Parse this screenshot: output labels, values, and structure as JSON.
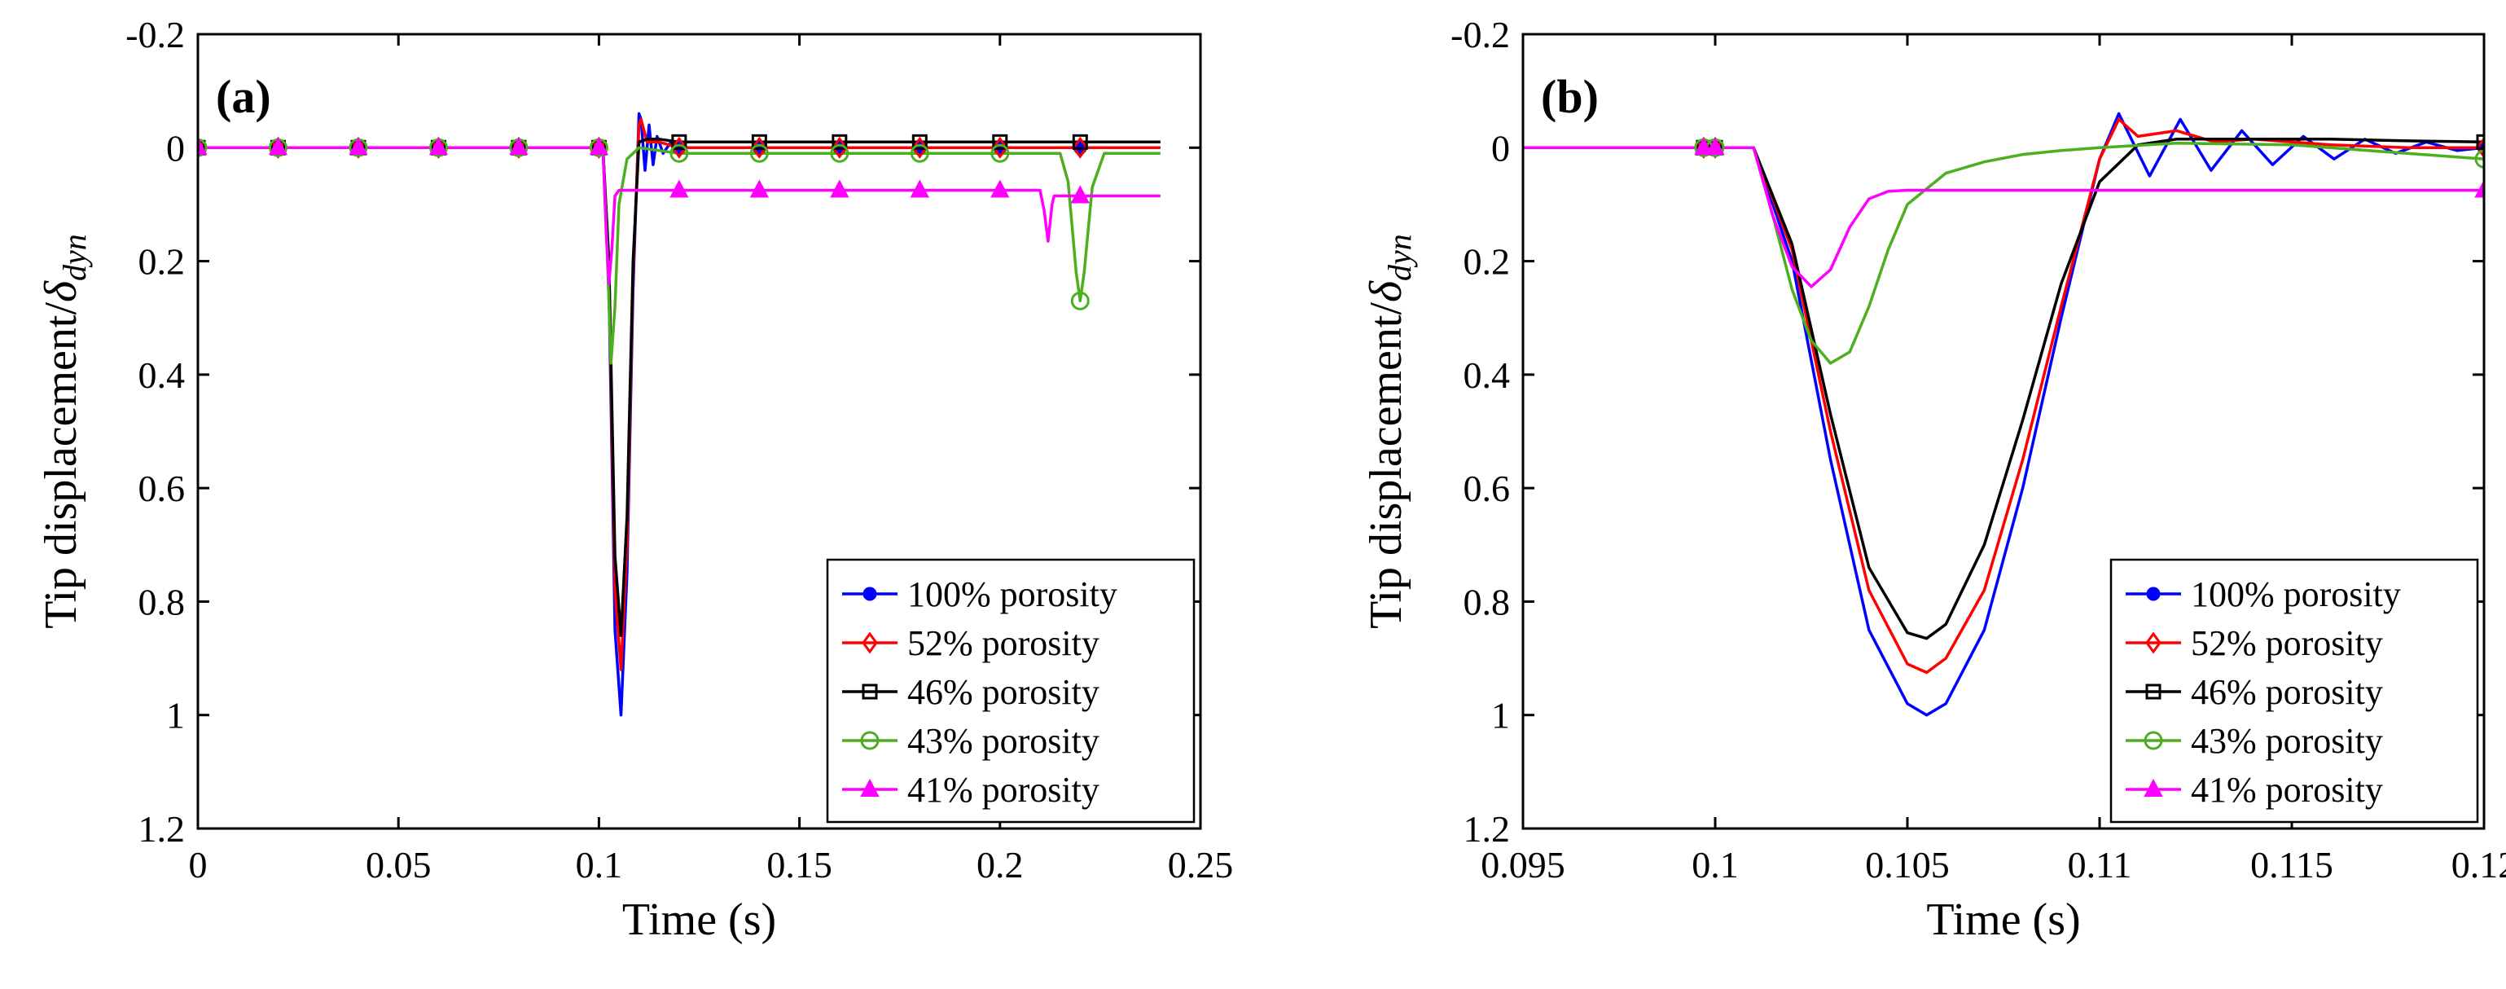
{
  "chart_data": [
    {
      "type": "line",
      "panel_label": "(a)",
      "xlabel": "Time (s)",
      "ylabel_main": "Tip displacement/",
      "ylabel_symbol": "δ",
      "ylabel_subscript": "dyn",
      "xlim": [
        0,
        0.25
      ],
      "ylim": [
        -0.2,
        1.2
      ],
      "y_reversed": true,
      "xticks": [
        0,
        0.05,
        0.1,
        0.15,
        0.2,
        0.25
      ],
      "xtick_labels": [
        "0",
        "0.05",
        "0.1",
        "0.15",
        "0.2",
        "0.25"
      ],
      "yticks": [
        -0.2,
        0,
        0.2,
        0.4,
        0.6,
        0.8,
        1,
        1.2
      ],
      "ytick_labels": [
        "-0.2",
        "0",
        "0.2",
        "0.4",
        "0.6",
        "0.8",
        "1",
        "1.2"
      ],
      "legend_position": "bottom-right",
      "series": [
        {
          "name": "100% porosity",
          "color": "#0000ff",
          "marker": "dot",
          "x": [
            0,
            0.101,
            0.1025,
            0.104,
            0.1055,
            0.107,
            0.1085,
            0.11,
            0.1105,
            0.1115,
            0.1125,
            0.1135,
            0.1145,
            0.116,
            0.118,
            0.12,
            0.24
          ],
          "y": [
            0,
            0,
            0.25,
            0.85,
            1.0,
            0.75,
            0.25,
            -0.06,
            -0.05,
            0.04,
            -0.04,
            0.03,
            -0.02,
            0.01,
            -0.01,
            0,
            0
          ],
          "marker_x": [
            0,
            0.02,
            0.04,
            0.06,
            0.08,
            0.1,
            0.12,
            0.14,
            0.16,
            0.18,
            0.2,
            0.22
          ]
        },
        {
          "name": "52% porosity",
          "color": "#ff0000",
          "marker": "diamond",
          "x": [
            0,
            0.101,
            0.1025,
            0.104,
            0.1055,
            0.107,
            0.1085,
            0.11,
            0.1105,
            0.112,
            0.115,
            0.12,
            0.24
          ],
          "y": [
            0,
            0,
            0.22,
            0.78,
            0.92,
            0.7,
            0.22,
            -0.04,
            -0.05,
            -0.01,
            -0.01,
            0,
            0
          ],
          "marker_x": [
            0,
            0.02,
            0.04,
            0.06,
            0.08,
            0.1,
            0.12,
            0.14,
            0.16,
            0.18,
            0.2,
            0.22
          ]
        },
        {
          "name": "46% porosity",
          "color": "#000000",
          "marker": "square",
          "x": [
            0,
            0.101,
            0.1025,
            0.104,
            0.1055,
            0.107,
            0.1085,
            0.11,
            0.112,
            0.115,
            0.12,
            0.24
          ],
          "y": [
            0,
            0,
            0.2,
            0.72,
            0.86,
            0.65,
            0.2,
            -0.01,
            -0.015,
            -0.015,
            -0.01,
            -0.01
          ],
          "marker_x": [
            0,
            0.02,
            0.04,
            0.06,
            0.08,
            0.1,
            0.12,
            0.14,
            0.16,
            0.18,
            0.2,
            0.22
          ]
        },
        {
          "name": "43% porosity",
          "color": "#4caf1f",
          "marker": "circle",
          "x": [
            0,
            0.101,
            0.102,
            0.103,
            0.104,
            0.105,
            0.107,
            0.11,
            0.12,
            0.215,
            0.217,
            0.219,
            0.22,
            0.221,
            0.223,
            0.226,
            0.24
          ],
          "y": [
            0,
            0,
            0.17,
            0.38,
            0.28,
            0.1,
            0.02,
            0,
            0.01,
            0.01,
            0.06,
            0.22,
            0.27,
            0.22,
            0.07,
            0.01,
            0.01
          ],
          "marker_x": [
            0,
            0.02,
            0.04,
            0.06,
            0.08,
            0.1,
            0.12,
            0.14,
            0.16,
            0.18,
            0.2,
            0.22
          ]
        },
        {
          "name": "41% porosity",
          "color": "#ff00ff",
          "marker": "triangle",
          "x": [
            0,
            0.101,
            0.1018,
            0.1025,
            0.1032,
            0.104,
            0.105,
            0.21,
            0.211,
            0.212,
            0.213,
            0.2135,
            0.24
          ],
          "y": [
            0,
            0,
            0.15,
            0.24,
            0.18,
            0.085,
            0.075,
            0.075,
            0.11,
            0.165,
            0.1,
            0.085,
            0.085
          ],
          "marker_x": [
            0,
            0.02,
            0.04,
            0.06,
            0.08,
            0.1,
            0.12,
            0.14,
            0.16,
            0.18,
            0.2,
            0.22
          ]
        }
      ]
    },
    {
      "type": "line",
      "panel_label": "(b)",
      "xlabel": "Time (s)",
      "ylabel_main": "Tip displacement/",
      "ylabel_symbol": "δ",
      "ylabel_subscript": "dyn",
      "xlim": [
        0.095,
        0.12
      ],
      "ylim": [
        -0.2,
        1.2
      ],
      "y_reversed": true,
      "xticks": [
        0.095,
        0.1,
        0.105,
        0.11,
        0.115,
        0.12
      ],
      "xtick_labels": [
        "0.095",
        "0.1",
        "0.105",
        "0.11",
        "0.115",
        "0.12"
      ],
      "yticks": [
        -0.2,
        0,
        0.2,
        0.4,
        0.6,
        0.8,
        1,
        1.2
      ],
      "ytick_labels": [
        "-0.2",
        "0",
        "0.2",
        "0.4",
        "0.6",
        "0.8",
        "1",
        "1.2"
      ],
      "legend_position": "bottom-right",
      "series": [
        {
          "name": "100% porosity",
          "color": "#0000ff",
          "marker": "dot",
          "x": [
            0.095,
            0.101,
            0.102,
            0.103,
            0.104,
            0.105,
            0.1055,
            0.106,
            0.107,
            0.108,
            0.109,
            0.11,
            0.1105,
            0.1113,
            0.1121,
            0.1129,
            0.1137,
            0.1145,
            0.1153,
            0.1161,
            0.1169,
            0.1177,
            0.1185,
            0.1193,
            0.12
          ],
          "y": [
            0,
            0,
            0.2,
            0.55,
            0.85,
            0.98,
            1.0,
            0.98,
            0.85,
            0.6,
            0.3,
            0.02,
            -0.06,
            0.05,
            -0.05,
            0.04,
            -0.03,
            0.03,
            -0.02,
            0.02,
            -0.015,
            0.01,
            -0.01,
            0.005,
            0
          ],
          "marker_x": [
            0.0997,
            0.1,
            0.12
          ]
        },
        {
          "name": "52% porosity",
          "color": "#ff0000",
          "marker": "diamond",
          "x": [
            0.095,
            0.101,
            0.102,
            0.103,
            0.104,
            0.105,
            0.1055,
            0.106,
            0.107,
            0.108,
            0.109,
            0.11,
            0.1105,
            0.111,
            0.112,
            0.113,
            0.114,
            0.116,
            0.118,
            0.12
          ],
          "y": [
            0,
            0,
            0.18,
            0.5,
            0.78,
            0.91,
            0.925,
            0.9,
            0.78,
            0.55,
            0.28,
            0.02,
            -0.05,
            -0.02,
            -0.03,
            -0.01,
            -0.015,
            -0.005,
            0,
            0
          ],
          "marker_x": [
            0.0997,
            0.1,
            0.12
          ]
        },
        {
          "name": "46% porosity",
          "color": "#000000",
          "marker": "square",
          "x": [
            0.095,
            0.101,
            0.102,
            0.103,
            0.104,
            0.105,
            0.1055,
            0.106,
            0.107,
            0.108,
            0.109,
            0.11,
            0.111,
            0.112,
            0.114,
            0.116,
            0.118,
            0.12
          ],
          "y": [
            0,
            0,
            0.17,
            0.47,
            0.74,
            0.855,
            0.865,
            0.84,
            0.7,
            0.48,
            0.24,
            0.06,
            -0.005,
            -0.015,
            -0.015,
            -0.015,
            -0.012,
            -0.01
          ],
          "marker_x": [
            0.0997,
            0.1,
            0.12
          ]
        },
        {
          "name": "43% porosity",
          "color": "#4caf1f",
          "marker": "circle",
          "x": [
            0.095,
            0.101,
            0.1015,
            0.102,
            0.1025,
            0.103,
            0.1035,
            0.104,
            0.1045,
            0.105,
            0.106,
            0.107,
            0.108,
            0.109,
            0.11,
            0.112,
            0.115,
            0.118,
            0.12
          ],
          "y": [
            0,
            0,
            0.12,
            0.25,
            0.34,
            0.38,
            0.36,
            0.28,
            0.18,
            0.1,
            0.045,
            0.025,
            0.012,
            0.005,
            0,
            -0.008,
            -0.005,
            0.01,
            0.02
          ],
          "marker_x": [
            0.0997,
            0.1,
            0.12
          ]
        },
        {
          "name": "41% porosity",
          "color": "#ff00ff",
          "marker": "triangle",
          "x": [
            0.095,
            0.101,
            0.1015,
            0.102,
            0.1025,
            0.103,
            0.1035,
            0.104,
            0.1045,
            0.105,
            0.12
          ],
          "y": [
            0,
            0,
            0.12,
            0.21,
            0.245,
            0.215,
            0.14,
            0.09,
            0.077,
            0.075,
            0.075
          ],
          "marker_x": [
            0.0997,
            0.1,
            0.12
          ]
        }
      ]
    }
  ]
}
